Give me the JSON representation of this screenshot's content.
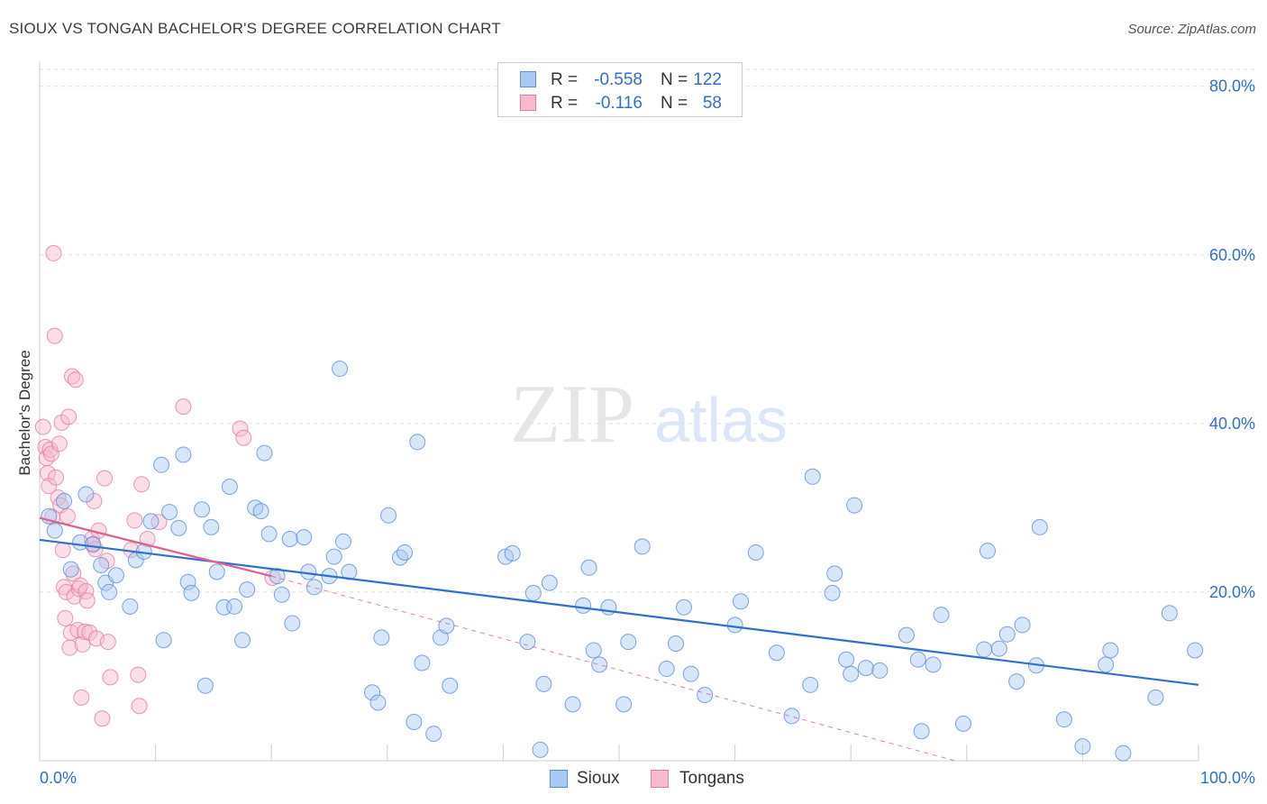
{
  "title": "SIOUX VS TONGAN BACHELOR'S DEGREE CORRELATION CHART",
  "source": "Source: ZipAtlas.com",
  "watermark_zip": "ZIP",
  "watermark_atlas": "atlas",
  "legend_top": {
    "sioux": {
      "r_label": "R =",
      "r_value": "-0.558",
      "n_label": "N =",
      "n_value": "122"
    },
    "tongans": {
      "r_label": "R =",
      "r_value": "-0.116",
      "n_label": "N =",
      "n_value": "58"
    }
  },
  "legend_bottom": {
    "sioux": "Sioux",
    "tongans": "Tongans"
  },
  "colors": {
    "sioux_fill": "#a9c8f2",
    "sioux_stroke": "#5b8fd8",
    "sioux_line": "#2f6fd1",
    "tongans_fill": "#f7b9cb",
    "tongans_stroke": "#e07fa0",
    "tongans_line": "#e0628b",
    "tick_text": "#2e6fd1",
    "grid": "#dddddd"
  },
  "chart_data": {
    "type": "scatter",
    "title": "SIOUX VS TONGAN BACHELOR'S DEGREE CORRELATION CHART",
    "xlabel": "",
    "ylabel": "Bachelor's Degree",
    "xlim": [
      0,
      100
    ],
    "ylim": [
      0,
      82
    ],
    "x_tick_labels": [
      "0.0%",
      "100.0%"
    ],
    "y_ticks": [
      20,
      40,
      60,
      80
    ],
    "y_tick_labels": [
      "20.0%",
      "40.0%",
      "60.0%",
      "80.0%"
    ],
    "grid": true,
    "series": [
      {
        "name": "Sioux",
        "r": -0.558,
        "n": 122,
        "trend": {
          "x": [
            0,
            100
          ],
          "y": [
            26.2,
            9.0
          ]
        },
        "points": [
          [
            0.8,
            29.0
          ],
          [
            1.3,
            27.3
          ],
          [
            2.1,
            30.8
          ],
          [
            2.7,
            22.7
          ],
          [
            3.5,
            25.9
          ],
          [
            4.0,
            31.6
          ],
          [
            4.6,
            25.7
          ],
          [
            5.3,
            23.2
          ],
          [
            5.7,
            21.1
          ],
          [
            6.0,
            20.0
          ],
          [
            6.6,
            22.0
          ],
          [
            7.8,
            18.3
          ],
          [
            8.3,
            23.8
          ],
          [
            9.0,
            24.8
          ],
          [
            9.6,
            28.4
          ],
          [
            10.5,
            35.1
          ],
          [
            10.7,
            14.3
          ],
          [
            11.2,
            29.5
          ],
          [
            12.0,
            27.6
          ],
          [
            12.4,
            36.3
          ],
          [
            12.8,
            21.2
          ],
          [
            13.1,
            19.9
          ],
          [
            14.0,
            29.8
          ],
          [
            14.8,
            27.7
          ],
          [
            15.3,
            22.4
          ],
          [
            15.9,
            18.2
          ],
          [
            16.4,
            32.5
          ],
          [
            16.8,
            18.3
          ],
          [
            17.5,
            14.3
          ],
          [
            17.9,
            20.3
          ],
          [
            18.6,
            30.0
          ],
          [
            19.1,
            29.6
          ],
          [
            19.4,
            36.5
          ],
          [
            19.8,
            26.9
          ],
          [
            20.5,
            21.9
          ],
          [
            20.9,
            19.7
          ],
          [
            21.6,
            26.3
          ],
          [
            21.8,
            16.3
          ],
          [
            22.8,
            26.5
          ],
          [
            23.2,
            22.4
          ],
          [
            23.7,
            20.6
          ],
          [
            14.3,
            8.9
          ],
          [
            25.0,
            21.9
          ],
          [
            25.4,
            24.2
          ],
          [
            26.2,
            26.0
          ],
          [
            26.7,
            22.4
          ],
          [
            25.9,
            46.5
          ],
          [
            28.7,
            8.1
          ],
          [
            29.2,
            6.9
          ],
          [
            29.5,
            14.6
          ],
          [
            30.1,
            29.1
          ],
          [
            31.1,
            24.1
          ],
          [
            31.5,
            24.7
          ],
          [
            32.3,
            4.6
          ],
          [
            32.6,
            37.8
          ],
          [
            33.0,
            11.6
          ],
          [
            34.0,
            3.2
          ],
          [
            34.6,
            14.6
          ],
          [
            35.1,
            16.0
          ],
          [
            35.4,
            8.9
          ],
          [
            40.2,
            24.2
          ],
          [
            40.8,
            24.6
          ],
          [
            42.1,
            14.1
          ],
          [
            42.6,
            19.9
          ],
          [
            43.2,
            1.3
          ],
          [
            43.5,
            9.1
          ],
          [
            44.0,
            21.1
          ],
          [
            46.0,
            6.7
          ],
          [
            46.9,
            18.4
          ],
          [
            47.4,
            22.9
          ],
          [
            47.8,
            13.1
          ],
          [
            48.3,
            11.4
          ],
          [
            49.1,
            18.2
          ],
          [
            50.4,
            6.7
          ],
          [
            50.8,
            14.1
          ],
          [
            52.0,
            25.4
          ],
          [
            54.1,
            10.9
          ],
          [
            54.9,
            13.9
          ],
          [
            55.6,
            18.2
          ],
          [
            56.2,
            10.3
          ],
          [
            57.4,
            7.8
          ],
          [
            60.0,
            16.1
          ],
          [
            60.5,
            18.9
          ],
          [
            61.8,
            24.7
          ],
          [
            63.6,
            12.8
          ],
          [
            64.9,
            5.3
          ],
          [
            66.5,
            9.0
          ],
          [
            66.7,
            33.7
          ],
          [
            68.4,
            19.9
          ],
          [
            68.6,
            22.2
          ],
          [
            69.6,
            12.0
          ],
          [
            70.0,
            10.3
          ],
          [
            70.3,
            30.3
          ],
          [
            71.3,
            11.0
          ],
          [
            72.5,
            10.7
          ],
          [
            74.8,
            14.9
          ],
          [
            75.8,
            12.0
          ],
          [
            76.1,
            3.5
          ],
          [
            77.1,
            11.4
          ],
          [
            77.8,
            17.3
          ],
          [
            79.7,
            4.4
          ],
          [
            81.5,
            13.2
          ],
          [
            81.8,
            24.9
          ],
          [
            82.8,
            13.3
          ],
          [
            83.5,
            15.0
          ],
          [
            84.3,
            9.4
          ],
          [
            84.8,
            16.1
          ],
          [
            86.0,
            11.3
          ],
          [
            86.3,
            27.7
          ],
          [
            88.4,
            4.9
          ],
          [
            90.0,
            1.7
          ],
          [
            92.0,
            11.4
          ],
          [
            92.4,
            13.1
          ],
          [
            93.5,
            0.9
          ],
          [
            96.3,
            7.5
          ],
          [
            97.5,
            17.5
          ],
          [
            99.7,
            13.1
          ]
        ]
      },
      {
        "name": "Tongans",
        "r": -0.116,
        "n": 58,
        "trend": {
          "x": [
            0,
            20
          ],
          "y": [
            28.8,
            21.9
          ]
        },
        "trend_extended": {
          "x": [
            20,
            79
          ],
          "y": [
            21.9,
            0
          ]
        },
        "points": [
          [
            0.3,
            39.6
          ],
          [
            0.5,
            37.2
          ],
          [
            0.6,
            35.9
          ],
          [
            0.7,
            34.1
          ],
          [
            0.8,
            32.6
          ],
          [
            0.9,
            36.9
          ],
          [
            1.0,
            36.4
          ],
          [
            1.1,
            28.9
          ],
          [
            1.2,
            60.2
          ],
          [
            1.3,
            50.4
          ],
          [
            1.4,
            33.6
          ],
          [
            1.6,
            31.2
          ],
          [
            1.7,
            37.6
          ],
          [
            1.8,
            30.3
          ],
          [
            1.9,
            40.1
          ],
          [
            2.0,
            25.0
          ],
          [
            2.1,
            20.6
          ],
          [
            2.2,
            16.9
          ],
          [
            2.3,
            20.0
          ],
          [
            2.4,
            29.0
          ],
          [
            2.5,
            40.8
          ],
          [
            2.6,
            13.4
          ],
          [
            2.7,
            15.2
          ],
          [
            2.8,
            45.6
          ],
          [
            2.9,
            22.2
          ],
          [
            3.0,
            19.5
          ],
          [
            3.1,
            45.2
          ],
          [
            3.3,
            15.5
          ],
          [
            3.4,
            20.4
          ],
          [
            3.5,
            20.8
          ],
          [
            3.6,
            7.5
          ],
          [
            3.7,
            13.8
          ],
          [
            3.9,
            15.3
          ],
          [
            4.0,
            20.1
          ],
          [
            4.1,
            19.0
          ],
          [
            4.3,
            15.2
          ],
          [
            4.5,
            26.3
          ],
          [
            4.6,
            25.6
          ],
          [
            4.7,
            30.8
          ],
          [
            4.8,
            25.1
          ],
          [
            4.9,
            14.5
          ],
          [
            5.1,
            27.3
          ],
          [
            5.4,
            5.0
          ],
          [
            5.6,
            33.5
          ],
          [
            5.8,
            23.7
          ],
          [
            5.9,
            14.1
          ],
          [
            6.1,
            9.9
          ],
          [
            7.9,
            25.0
          ],
          [
            8.2,
            28.5
          ],
          [
            8.5,
            10.2
          ],
          [
            8.6,
            6.5
          ],
          [
            8.8,
            32.8
          ],
          [
            9.3,
            26.3
          ],
          [
            10.3,
            28.3
          ],
          [
            12.4,
            42.0
          ],
          [
            17.3,
            39.4
          ],
          [
            17.6,
            38.3
          ],
          [
            20.1,
            21.7
          ]
        ]
      }
    ]
  }
}
